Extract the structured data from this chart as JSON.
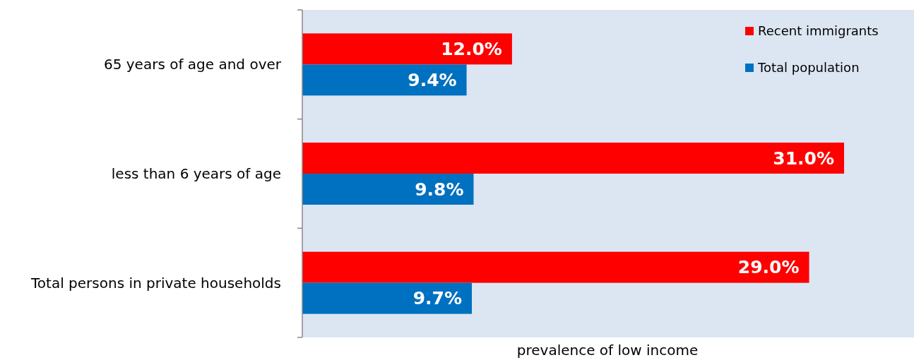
{
  "chart_data": {
    "type": "bar",
    "orientation": "horizontal",
    "xlabel": "prevalence of low income",
    "categories": [
      "65 years of age and over",
      "less than 6 years of age",
      "Total persons in private households"
    ],
    "series": [
      {
        "name": "Recent immigrants",
        "color": "#ff0000",
        "values": [
          12.0,
          31.0,
          29.0
        ],
        "value_labels": [
          "12.0%",
          "31.0%",
          "29.0%"
        ]
      },
      {
        "name": "Total population",
        "color": "#0070c0",
        "values": [
          9.4,
          9.8,
          9.7
        ],
        "value_labels": [
          "9.4%",
          "9.8%",
          "9.7%"
        ]
      }
    ],
    "xlim": [
      0,
      35
    ],
    "grid": false,
    "legend": "top right",
    "tick_labels": "y"
  }
}
